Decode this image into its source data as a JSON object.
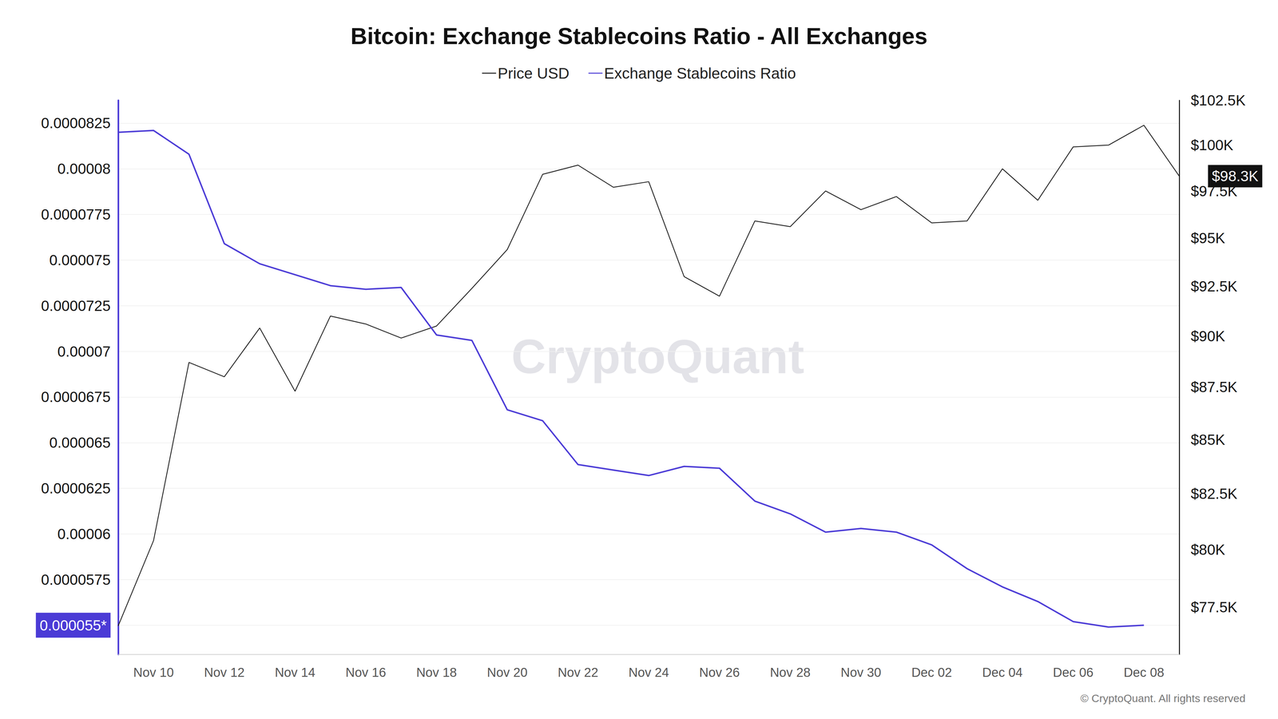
{
  "chart_data": {
    "type": "line",
    "title": "Bitcoin: Exchange Stablecoins Ratio - All Exchanges",
    "categories": [
      null,
      "Nov 10",
      null,
      "Nov 12",
      null,
      "Nov 14",
      null,
      "Nov 16",
      null,
      "Nov 18",
      null,
      "Nov 20",
      null,
      "Nov 22",
      null,
      "Nov 24",
      null,
      "Nov 26",
      null,
      "Nov 28",
      null,
      "Nov 30",
      null,
      "Dec 02",
      null,
      "Dec 04",
      null,
      "Dec 06",
      null,
      "Dec 08",
      null
    ],
    "series": [
      {
        "name": "Price USD",
        "color": "#1a1a1a",
        "axis": "y2",
        "values": [
          76700,
          80400,
          88700,
          88000,
          90400,
          87300,
          91000,
          90600,
          89900,
          90500,
          92400,
          94400,
          98400,
          98900,
          97700,
          98000,
          93000,
          92000,
          95900,
          95600,
          97500,
          96500,
          97200,
          95800,
          95900,
          98700,
          97000,
          99900,
          100000,
          101100,
          98300
        ]
      },
      {
        "name": "Exchange Stablecoins Ratio",
        "color": "#4b3bd6",
        "axis": "y",
        "values": [
          8.2e-05,
          8.21e-05,
          8.08e-05,
          7.59e-05,
          7.48e-05,
          7.42e-05,
          7.36e-05,
          7.34e-05,
          7.35e-05,
          7.09e-05,
          7.06e-05,
          6.68e-05,
          6.62e-05,
          6.38e-05,
          6.35e-05,
          6.32e-05,
          6.37e-05,
          6.36e-05,
          6.18e-05,
          6.11e-05,
          6.01e-05,
          6.03e-05,
          6.01e-05,
          5.94e-05,
          5.81e-05,
          5.71e-05,
          5.63e-05,
          5.52e-05,
          5.49e-05,
          5.5e-05,
          null
        ]
      }
    ],
    "ylim": [
      5.34e-05,
      8.375e-05
    ],
    "yticks": [
      {
        "value": 5.5e-05,
        "label": "0.000055*"
      },
      5.75e-05,
      6e-05,
      6.25e-05,
      6.5e-05,
      6.75e-05,
      7e-05,
      7.25e-05,
      7.5e-05,
      7.75e-05,
      8e-05,
      8.25e-05
    ],
    "y2lim": [
      75500,
      102500
    ],
    "y2ticks": [
      {
        "value": 77500,
        "label": "$77.5K"
      },
      {
        "value": 80000,
        "label": "$80K"
      },
      {
        "value": 82500,
        "label": "$82.5K"
      },
      {
        "value": 85000,
        "label": "$85K"
      },
      {
        "value": 87500,
        "label": "$87.5K"
      },
      {
        "value": 90000,
        "label": "$90K"
      },
      {
        "value": 92500,
        "label": "$92.5K"
      },
      {
        "value": 95000,
        "label": "$95K"
      },
      {
        "value": 97500,
        "label": "$97.5K"
      },
      {
        "value": 100000,
        "label": "$100K"
      },
      {
        "value": 102500,
        "label": "$102.5K"
      }
    ],
    "log": "y2",
    "grid": true,
    "legend": "top",
    "annotations": [
      {
        "text": "$98.3K",
        "series": "Price USD"
      },
      {
        "text": "CryptoQuant",
        "position": "center"
      },
      {
        "text": "© CryptoQuant. All rights reserved",
        "position": "bottom-right"
      }
    ]
  }
}
